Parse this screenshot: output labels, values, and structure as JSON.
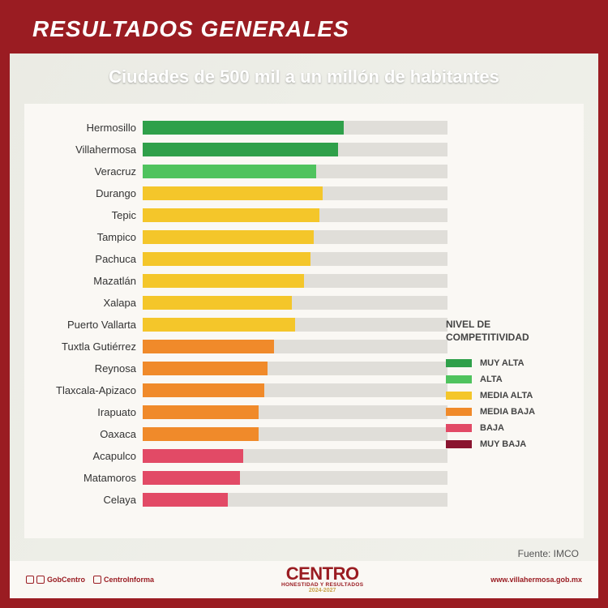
{
  "header": {
    "title": "RESULTADOS GENERALES"
  },
  "subtitle": "Ciudades de 500 mil a un millón de habitantes",
  "chart": {
    "type": "bar",
    "max_value": 100,
    "bar_track_color": "#e0ded9",
    "background_color": "#faf8f4",
    "bars": [
      {
        "label": "Hermosillo",
        "value": 66,
        "color": "#2fa04a"
      },
      {
        "label": "Villahermosa",
        "value": 64,
        "color": "#2fa04a"
      },
      {
        "label": "Veracruz",
        "value": 57,
        "color": "#4fc35e"
      },
      {
        "label": "Durango",
        "value": 59,
        "color": "#f4c62a"
      },
      {
        "label": "Tepic",
        "value": 58,
        "color": "#f4c62a"
      },
      {
        "label": "Tampico",
        "value": 56,
        "color": "#f4c62a"
      },
      {
        "label": "Pachuca",
        "value": 55,
        "color": "#f4c62a"
      },
      {
        "label": "Mazatlán",
        "value": 53,
        "color": "#f4c62a"
      },
      {
        "label": "Xalapa",
        "value": 49,
        "color": "#f4c62a"
      },
      {
        "label": "Puerto Vallarta",
        "value": 50,
        "color": "#f4c62a"
      },
      {
        "label": "Tuxtla Gutiérrez",
        "value": 43,
        "color": "#f08a2a"
      },
      {
        "label": "Reynosa",
        "value": 41,
        "color": "#f08a2a"
      },
      {
        "label": "Tlaxcala-Apizaco",
        "value": 40,
        "color": "#f08a2a"
      },
      {
        "label": "Irapuato",
        "value": 38,
        "color": "#f08a2a"
      },
      {
        "label": "Oaxaca",
        "value": 38,
        "color": "#f08a2a"
      },
      {
        "label": "Acapulco",
        "value": 33,
        "color": "#e24a66"
      },
      {
        "label": "Matamoros",
        "value": 32,
        "color": "#e24a66"
      },
      {
        "label": "Celaya",
        "value": 28,
        "color": "#e24a66"
      }
    ]
  },
  "legend": {
    "title": "NIVEL DE COMPETITIVIDAD",
    "items": [
      {
        "label": "MUY ALTA",
        "color": "#2fa04a"
      },
      {
        "label": "ALTA",
        "color": "#4fc35e"
      },
      {
        "label": "MEDIA ALTA",
        "color": "#f4c62a"
      },
      {
        "label": "MEDIA BAJA",
        "color": "#f08a2a"
      },
      {
        "label": "BAJA",
        "color": "#e24a66"
      },
      {
        "label": "MUY BAJA",
        "color": "#8a1530"
      }
    ]
  },
  "source": "Fuente: IMCO",
  "footer": {
    "social1": "GobCentro",
    "social2": "CentroInforma",
    "logo_main": "CENTRO",
    "logo_sub": "HONESTIDAD Y RESULTADOS",
    "logo_years": "2024-2027",
    "site": "www.villahermosa.gob.mx"
  },
  "colors": {
    "frame_border": "#9a1c22",
    "header_bg": "#9a1c22",
    "header_text": "#ffffff",
    "subtitle_text": "#ffffff",
    "text": "#333333"
  }
}
